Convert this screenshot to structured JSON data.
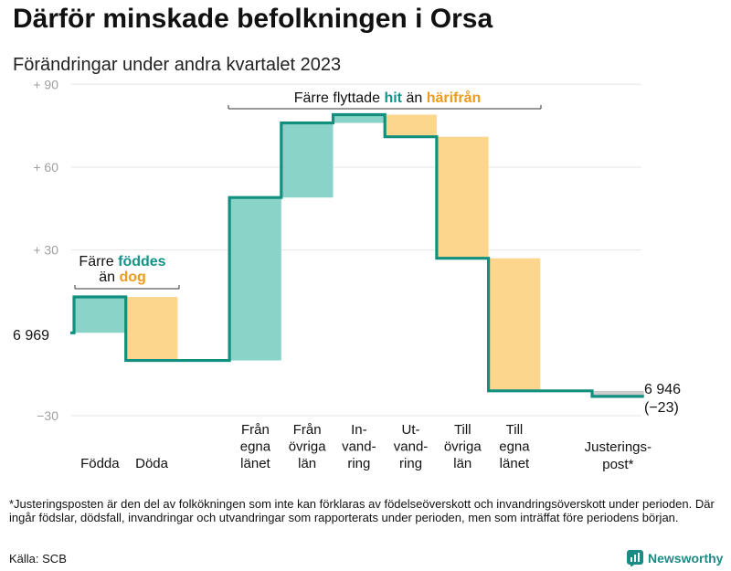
{
  "title": "Därför minskade befolkningen i Orsa",
  "subtitle": "Förändringar under andra kvartalet 2023",
  "footnote": "*Justeringsposten är den del av folkökningen som inte kan förklaras av födelseöverskott och invandringsöverskott under perioden. Där ingår födslar, dödsfall, invandringar och utvandringar som rapporterats under perioden, men som inträffat före periodens början.",
  "source": "Källa: SCB",
  "brand": "Newsworthy",
  "colors": {
    "increase": "#8ad3c8",
    "decrease": "#fdd68e",
    "line": "#12907f",
    "adjustment": "#cccccc"
  },
  "chart_data": {
    "type": "waterfall",
    "start_value": 6969,
    "start_label": "6 969",
    "end_label_value": "6 946",
    "end_label_change": "(−23)",
    "baseline_offset": 6969,
    "y_axis": {
      "ylim": [
        -32,
        92
      ],
      "ticks": [
        {
          "value": 90,
          "label": "+  90"
        },
        {
          "value": 60,
          "label": "+  60"
        },
        {
          "value": 30,
          "label": "+  30"
        },
        {
          "value": -30,
          "label": "−30"
        }
      ]
    },
    "steps": [
      {
        "label": [
          "Födda"
        ],
        "change": 13,
        "kind": "increase"
      },
      {
        "label": [
          "Döda"
        ],
        "change": -23,
        "kind": "decrease"
      },
      {
        "label": [
          ""
        ],
        "change": 0,
        "kind": "spacer"
      },
      {
        "label": [
          "Från",
          "egna",
          "länet"
        ],
        "change": 59,
        "kind": "increase"
      },
      {
        "label": [
          "Från",
          "övriga",
          "län"
        ],
        "change": 27,
        "kind": "increase"
      },
      {
        "label": [
          "In-",
          "vand-",
          "ring"
        ],
        "change": 3,
        "kind": "increase"
      },
      {
        "label": [
          "Ut-",
          "vand-",
          "ring"
        ],
        "change": -8,
        "kind": "decrease"
      },
      {
        "label": [
          "Till",
          "övriga",
          "län"
        ],
        "change": -44,
        "kind": "decrease"
      },
      {
        "label": [
          "Till",
          "egna",
          "länet"
        ],
        "change": -48,
        "kind": "decrease"
      },
      {
        "label": [
          ""
        ],
        "change": 0,
        "kind": "spacer"
      },
      {
        "label": [
          "Justerings-",
          "post*"
        ],
        "change": -2,
        "kind": "adjustment"
      }
    ],
    "annotations": [
      {
        "lines": [
          [
            "Färre ",
            "födde",
            "s"
          ],
          [
            "än ",
            "dog",
            ""
          ]
        ],
        "words": {
          "a": "födde",
          "b": "dog"
        }
      },
      {
        "lines": [
          [
            "Färre flyttade ",
            "hit",
            " än ",
            "härifrån"
          ]
        ]
      }
    ],
    "annotation_texts": {
      "births_line1_pre": "Färre",
      "births_line1_hl": "föddes",
      "births_line2_pre": "än",
      "births_line2_hl": "dog",
      "moves_pre": "Färre flyttade",
      "moves_hl1": "hit",
      "moves_mid": "än",
      "moves_hl2": "härifrån"
    }
  }
}
